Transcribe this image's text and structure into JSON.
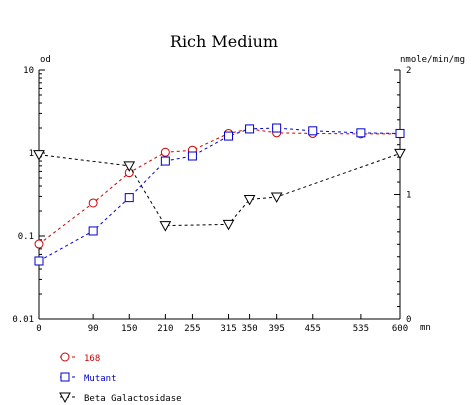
{
  "chart_data": {
    "type": "line",
    "title": "Rich Medium",
    "left_axis": {
      "label": "od",
      "scale": "log",
      "range": [
        0.01,
        10
      ],
      "ticks": [
        {
          "value": 0.01,
          "label": "0.01"
        },
        {
          "value": 0.1,
          "label": "0.1"
        },
        {
          "value": 1,
          "label": "1"
        },
        {
          "value": 10,
          "label": "10"
        }
      ]
    },
    "right_axis": {
      "label": "nmole/min/mg",
      "scale": "linear",
      "range": [
        0,
        2
      ],
      "ticks": [
        {
          "value": 0,
          "label": "0"
        },
        {
          "value": 1,
          "label": "1"
        },
        {
          "value": 2,
          "label": "2"
        }
      ]
    },
    "x_axis": {
      "label": "mn",
      "range": [
        0,
        600
      ],
      "ticks": [
        {
          "value": 0,
          "label": "0"
        },
        {
          "value": 90,
          "label": "90"
        },
        {
          "value": 150,
          "label": "150"
        },
        {
          "value": 210,
          "label": "210"
        },
        {
          "value": 255,
          "label": "255"
        },
        {
          "value": 315,
          "label": "315"
        },
        {
          "value": 350,
          "label": "350"
        },
        {
          "value": 395,
          "label": "395"
        },
        {
          "value": 455,
          "label": "455"
        },
        {
          "value": 535,
          "label": "535"
        },
        {
          "value": 600,
          "label": "600"
        }
      ]
    },
    "series": [
      {
        "name": "168",
        "axis": "left",
        "marker": "circle",
        "color": "#cc0000",
        "x": [
          0,
          90,
          150,
          210,
          255,
          315,
          350,
          395,
          455,
          535,
          600
        ],
        "y": [
          0.08,
          0.25,
          0.58,
          1.02,
          1.08,
          1.72,
          1.95,
          1.75,
          1.72,
          1.7,
          1.7
        ]
      },
      {
        "name": "Mutant",
        "axis": "left",
        "marker": "square",
        "color": "#0000cc",
        "x": [
          0,
          90,
          150,
          210,
          255,
          315,
          350,
          395,
          455,
          535,
          600
        ],
        "y": [
          0.05,
          0.115,
          0.29,
          0.8,
          0.92,
          1.6,
          1.95,
          2.0,
          1.85,
          1.75,
          1.72
        ]
      },
      {
        "name": "Beta Galactosidase",
        "axis": "right",
        "marker": "triangle-down",
        "color": "#000000",
        "x": [
          0,
          150,
          210,
          315,
          350,
          395,
          600
        ],
        "y": [
          1.32,
          1.23,
          0.75,
          0.76,
          0.96,
          0.98,
          1.33
        ]
      }
    ],
    "legend": {
      "placement": "bottom-left"
    },
    "grid": false
  }
}
